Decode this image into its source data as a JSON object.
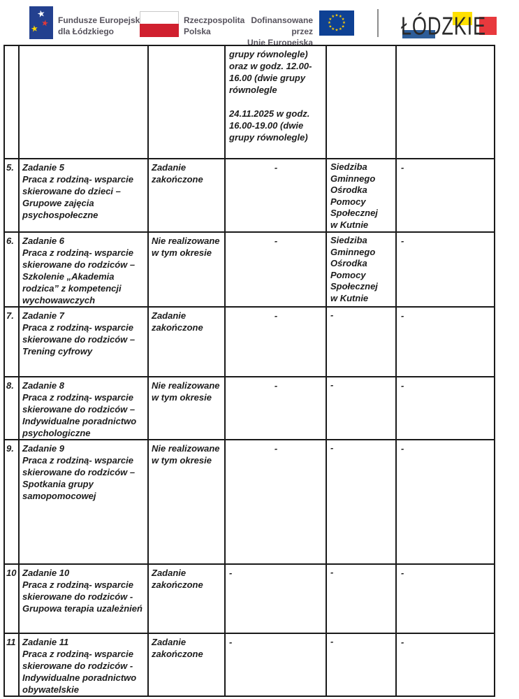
{
  "header": {
    "eu_funds_logo": {
      "label": "Fundusze Europejskie\ndla Łódzkiego",
      "flag_color": "#23408f",
      "star_colors": {
        "white": "#ffffff",
        "red": "#e0393b",
        "yellow": "#ffd800"
      }
    },
    "poland_logo": {
      "label": "Rzeczpospolita\nPolska",
      "flag_red": "#d0202f",
      "flag_white": "#ffffff"
    },
    "eu_funding_logo": {
      "label": "Dofinansowane przez\nUnię Europejską",
      "flag_color": "#0e4194",
      "star_color": "#ffcc00"
    },
    "lodzkie_logo": {
      "text": "ŁÓDZKIE",
      "accent_blue": "#2d5d99",
      "accent_yellow": "#ffe000",
      "accent_red": "#e8393d"
    }
  },
  "table": {
    "border_color": "#1a1a1a",
    "text_color": "#1c1c1c",
    "rows": [
      {
        "no": "",
        "task": "",
        "status": "",
        "schedule": "grupy równolegle)\noraz  w godz. 12.00-\n16.00 (dwie grupy\nrównolegle\n\n24.11.2025 w godz.\n16.00-19.00 (dwie\ngrupy równolegle)",
        "location": "",
        "notes": ""
      },
      {
        "no": "5.",
        "task": "Zadanie 5\nPraca z rodziną- wsparcie\nskierowane do dzieci –\nGrupowe zajęcia\npsychospołeczne",
        "status": "Zadanie\nzakończone",
        "schedule": "-",
        "location": "Siedziba\nGminnego\nOśrodka\nPomocy\nSpołecznej\nw Kutnie",
        "notes": "-"
      },
      {
        "no": "6.",
        "task": "Zadanie 6\nPraca z rodziną- wsparcie\nskierowane do rodziców –\nSzkolenie „Akademia\nrodzica” z kompetencji\nwychowawczych",
        "status": "Nie realizowane\nw tym okresie",
        "schedule": "-",
        "location": "Siedziba\nGminnego\nOśrodka\nPomocy\nSpołecznej\nw Kutnie",
        "notes": "-"
      },
      {
        "no": "7.",
        "task": "Zadanie 7\nPraca z rodziną- wsparcie\nskierowane do rodziców  –\nTrening cyfrowy",
        "status": "Zadanie\nzakończone",
        "schedule": "-",
        "location": "-",
        "notes": "-"
      },
      {
        "no": "8.",
        "task": "Zadanie 8\nPraca z rodziną- wsparcie\nskierowane do rodziców  –\nIndywidualne poradnictwo\npsychologiczne",
        "status": "Nie  realizowane\nw tym okresie",
        "schedule": "-",
        "location": "-",
        "notes": "-"
      },
      {
        "no": "9.",
        "task": "Zadanie 9\nPraca z rodziną- wsparcie\nskierowane do rodziców  –\nSpotkania grupy\nsamopomocowej",
        "status": "Nie realizowane\nw tym okresie",
        "schedule": "-",
        "location": "-",
        "notes": "-"
      },
      {
        "no": "10",
        "task": "Zadanie 10\nPraca z rodziną- wsparcie\nskierowane do rodziców  -\nGrupowa terapia uzależnień",
        "status": "Zadanie\nzakończone",
        "schedule": "-",
        "location": "-",
        "notes": "-"
      },
      {
        "no": "11",
        "task": "Zadanie 11\nPraca z rodziną- wsparcie\nskierowane do rodziców  -\nIndywidualne poradnictwo\nobywatelskie",
        "status": "Zadanie\nzakończone",
        "schedule": "-",
        "location": "-",
        "notes": "-"
      }
    ]
  }
}
